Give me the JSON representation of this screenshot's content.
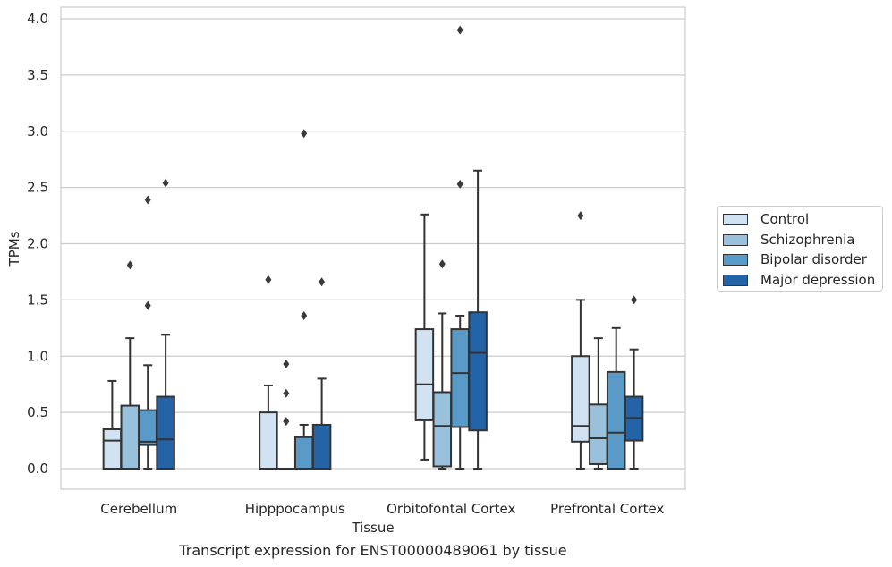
{
  "chart_data": {
    "type": "box",
    "xlabel": "Tissue",
    "ylabel": "TPMs",
    "caption": "Transcript expression for ENST00000489061 by tissue",
    "ylim": [
      -0.19,
      4.1
    ],
    "yticks": [
      "0.0",
      "0.5",
      "1.0",
      "1.5",
      "2.0",
      "2.5",
      "3.0",
      "3.5",
      "4.0"
    ],
    "ytick_values": [
      0,
      0.5,
      1.0,
      1.5,
      2.0,
      2.5,
      3.0,
      3.5,
      4.0
    ],
    "grid": "horizontal",
    "legend_position": "right",
    "categories": [
      "Cerebellum",
      "Hipppocampus",
      "Orbitofontal Cortex",
      "Prefrontal Cortex"
    ],
    "series": [
      {
        "name": "Control",
        "color": "#d1e2f2",
        "boxes": [
          {
            "whisker_low": 0.0,
            "q1": 0.0,
            "median": 0.25,
            "q3": 0.35,
            "whisker_high": 0.78,
            "outliers": []
          },
          {
            "whisker_low": 0.0,
            "q1": 0.0,
            "median": 0.0,
            "q3": 0.5,
            "whisker_high": 0.74,
            "outliers": [
              1.68
            ]
          },
          {
            "whisker_low": 0.08,
            "q1": 0.43,
            "median": 0.75,
            "q3": 1.24,
            "whisker_high": 2.26,
            "outliers": []
          },
          {
            "whisker_low": 0.0,
            "q1": 0.24,
            "median": 0.38,
            "q3": 1.0,
            "whisker_high": 1.5,
            "outliers": [
              2.25
            ]
          }
        ]
      },
      {
        "name": "Schizophrenia",
        "color": "#9ac1dc",
        "boxes": [
          {
            "whisker_low": 0.0,
            "q1": 0.0,
            "median": 0.0,
            "q3": 0.56,
            "whisker_high": 1.16,
            "outliers": [
              1.81
            ]
          },
          {
            "whisker_low": 0.0,
            "q1": 0.0,
            "median": 0.0,
            "q3": 0.0,
            "whisker_high": 0.0,
            "outliers": [
              0.42,
              0.67,
              0.93
            ]
          },
          {
            "whisker_low": 0.0,
            "q1": 0.02,
            "median": 0.38,
            "q3": 0.68,
            "whisker_high": 1.38,
            "outliers": [
              1.82
            ]
          },
          {
            "whisker_low": 0.0,
            "q1": 0.04,
            "median": 0.27,
            "q3": 0.57,
            "whisker_high": 1.16,
            "outliers": []
          }
        ]
      },
      {
        "name": "Bipolar disorder",
        "color": "#5a9ac8",
        "boxes": [
          {
            "whisker_low": 0.0,
            "q1": 0.21,
            "median": 0.24,
            "q3": 0.52,
            "whisker_high": 0.92,
            "outliers": [
              1.45,
              2.39
            ]
          },
          {
            "whisker_low": 0.0,
            "q1": 0.0,
            "median": 0.0,
            "q3": 0.28,
            "whisker_high": 0.39,
            "outliers": [
              1.36,
              2.98
            ]
          },
          {
            "whisker_low": 0.0,
            "q1": 0.37,
            "median": 0.85,
            "q3": 1.24,
            "whisker_high": 1.36,
            "outliers": [
              2.53,
              3.9
            ]
          },
          {
            "whisker_low": 0.0,
            "q1": 0.0,
            "median": 0.32,
            "q3": 0.86,
            "whisker_high": 1.25,
            "outliers": []
          }
        ]
      },
      {
        "name": "Major depression",
        "color": "#2463a5",
        "boxes": [
          {
            "whisker_low": 0.0,
            "q1": 0.0,
            "median": 0.26,
            "q3": 0.64,
            "whisker_high": 1.19,
            "outliers": [
              2.54
            ]
          },
          {
            "whisker_low": 0.0,
            "q1": 0.0,
            "median": 0.0,
            "q3": 0.39,
            "whisker_high": 0.8,
            "outliers": [
              1.66
            ]
          },
          {
            "whisker_low": 0.0,
            "q1": 0.34,
            "median": 1.03,
            "q3": 1.39,
            "whisker_high": 2.65,
            "outliers": []
          },
          {
            "whisker_low": 0.0,
            "q1": 0.25,
            "median": 0.45,
            "q3": 0.64,
            "whisker_high": 1.06,
            "outliers": [
              1.5
            ]
          }
        ]
      }
    ]
  }
}
